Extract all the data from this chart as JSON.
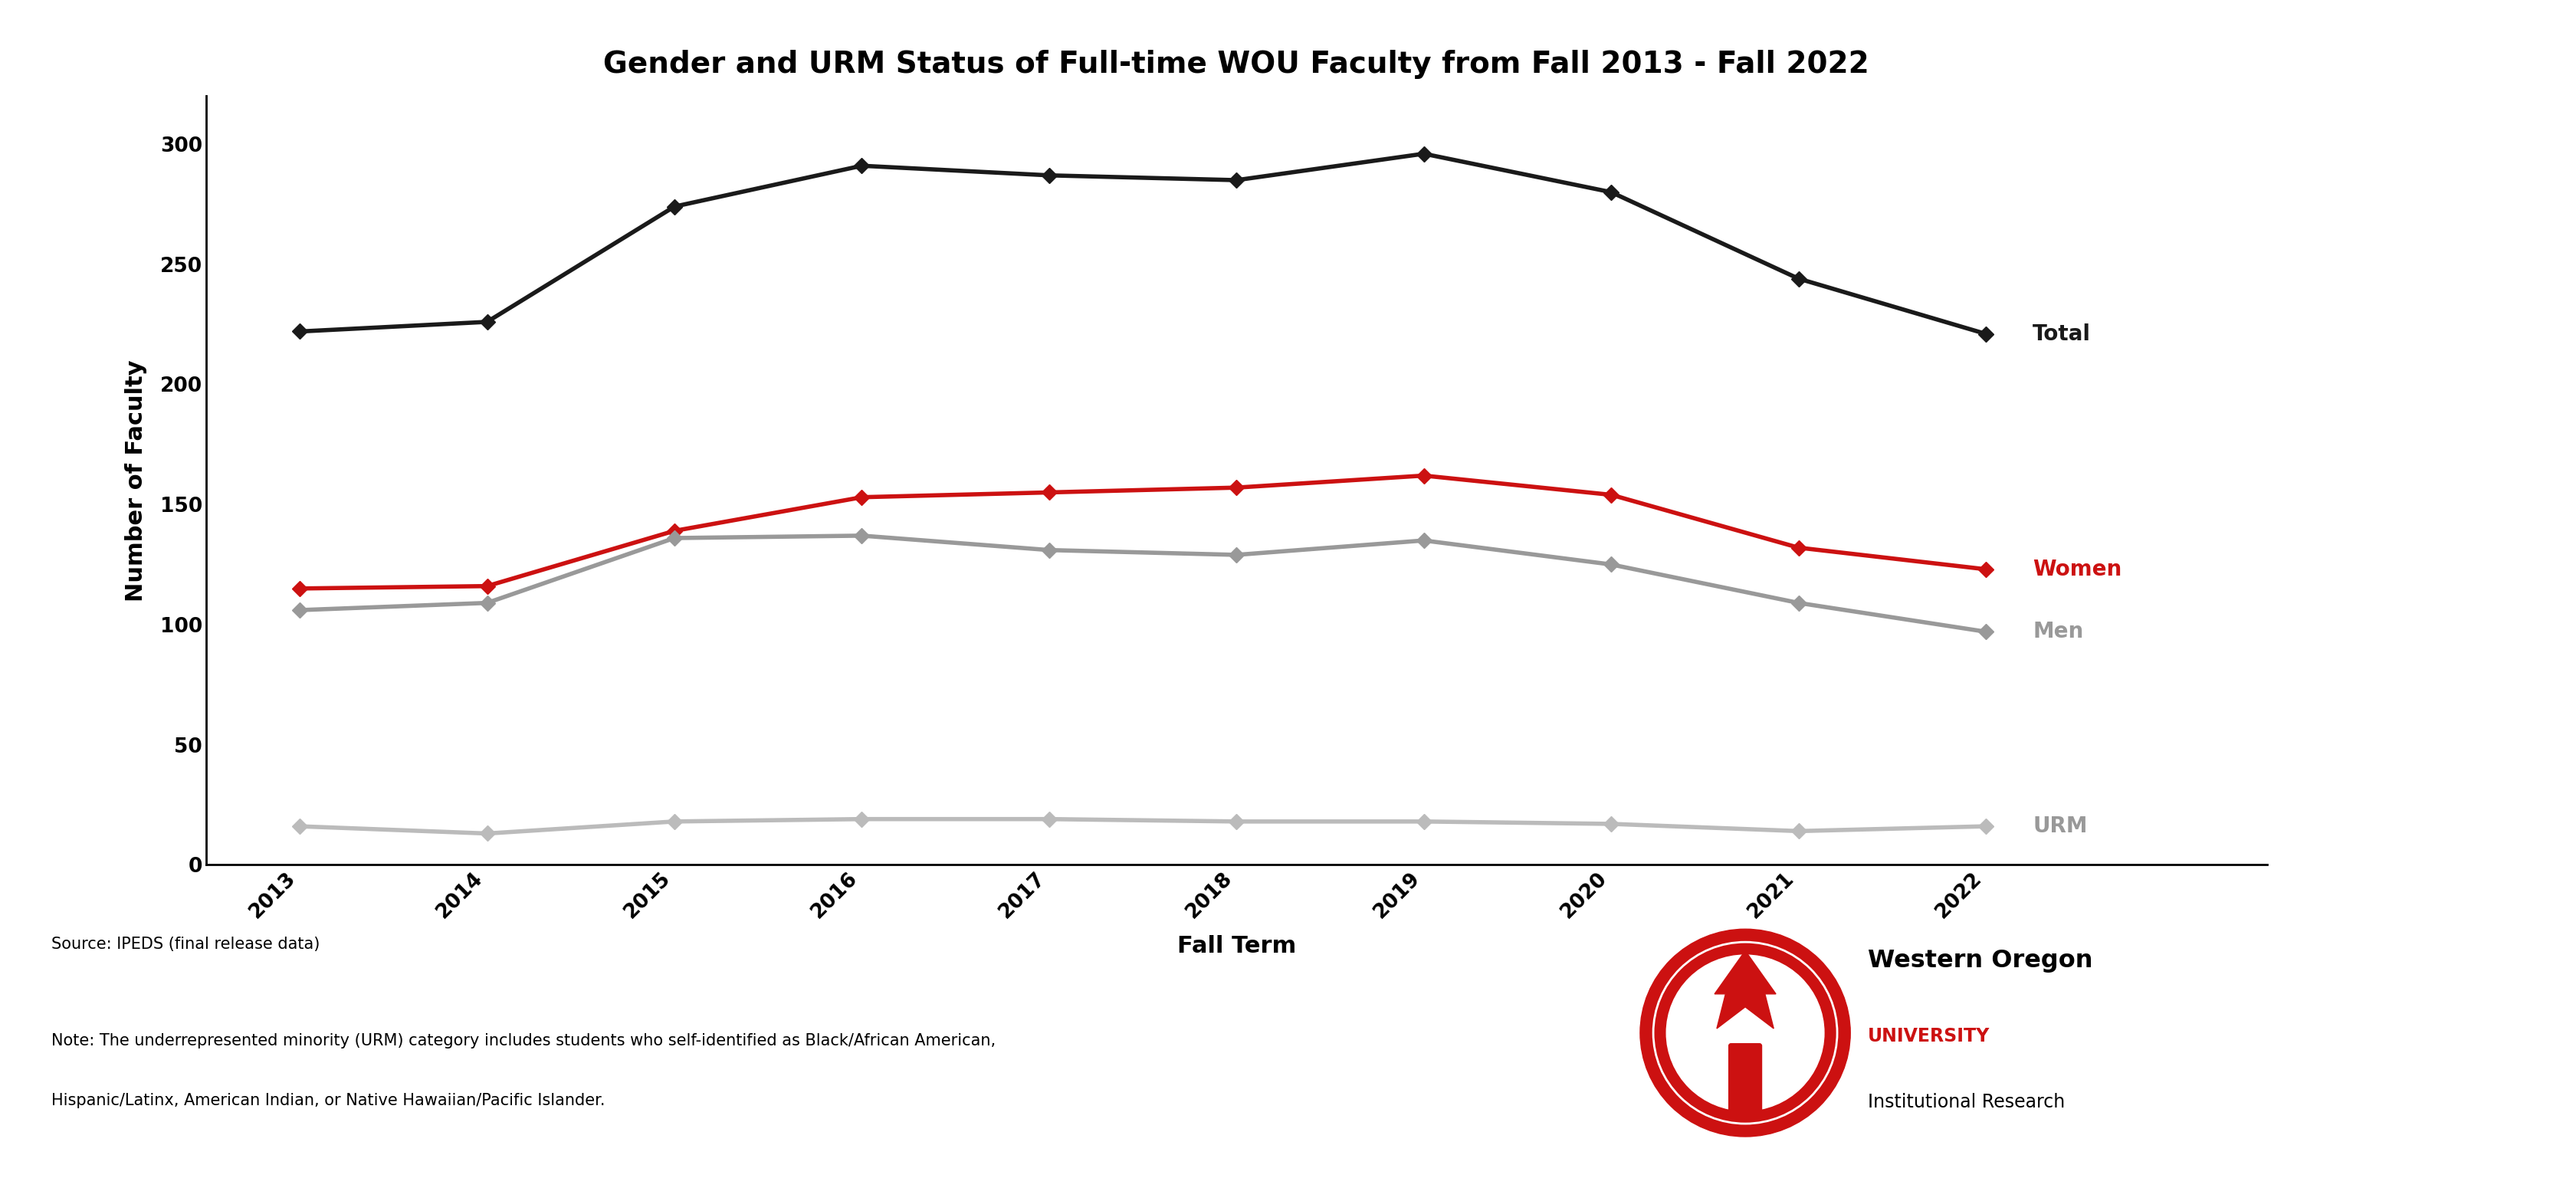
{
  "title": "Gender and URM Status of Full-time WOU Faculty from Fall 2013 - Fall 2022",
  "xlabel": "Fall Term",
  "ylabel": "Number of Faculty",
  "years": [
    2013,
    2014,
    2015,
    2016,
    2017,
    2018,
    2019,
    2020,
    2021,
    2022
  ],
  "total": [
    222,
    226,
    274,
    291,
    287,
    285,
    296,
    280,
    244,
    221
  ],
  "women": [
    115,
    116,
    139,
    153,
    155,
    157,
    162,
    154,
    132,
    123
  ],
  "men": [
    106,
    109,
    136,
    137,
    131,
    129,
    135,
    125,
    109,
    97
  ],
  "urm": [
    16,
    13,
    18,
    19,
    19,
    18,
    18,
    17,
    14,
    16
  ],
  "total_color": "#1a1a1a",
  "women_color": "#cc1111",
  "men_color": "#999999",
  "urm_color": "#bbbbbb",
  "ylim": [
    0,
    320
  ],
  "yticks": [
    0,
    50,
    100,
    150,
    200,
    250,
    300
  ],
  "background_color": "#ffffff",
  "source_text": "Source: IPEDS (final release data)",
  "note_line1": "Note: The underrepresented minority (URM) category includes students who self-identified as Black/African American,",
  "note_line2": "Hispanic/Latinx, American Indian, or Native Hawaiian/Pacific Islander.",
  "wou_line1": "Western Oregon",
  "wou_line2": "UNIVERSITY",
  "wou_line3": "Institutional Research",
  "title_fontsize": 28,
  "axis_label_fontsize": 22,
  "tick_fontsize": 19,
  "annotation_fontsize": 20,
  "note_fontsize": 15,
  "linewidth": 4.0,
  "markersize": 10
}
